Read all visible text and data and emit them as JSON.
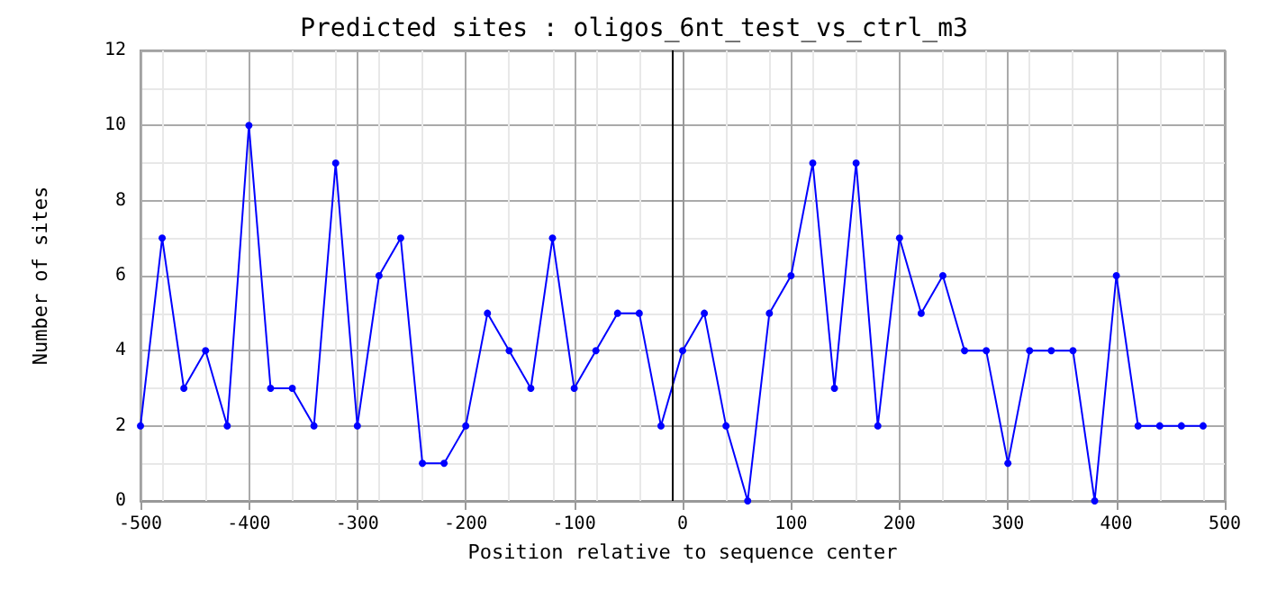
{
  "chart_data": {
    "type": "line",
    "title": "Predicted sites : oligos_6nt_test_vs_ctrl_m3",
    "xlabel": "Position relative to sequence center",
    "ylabel": "Number of sites",
    "x": [
      -500,
      -480,
      -460,
      -440,
      -420,
      -400,
      -380,
      -360,
      -340,
      -320,
      -300,
      -280,
      -260,
      -240,
      -220,
      -200,
      -180,
      -160,
      -140,
      -120,
      -100,
      -80,
      -60,
      -40,
      -20,
      0,
      20,
      40,
      60,
      80,
      100,
      120,
      140,
      160,
      180,
      200,
      220,
      240,
      260,
      280,
      300,
      320,
      340,
      360,
      380,
      400,
      420,
      440,
      460,
      480
    ],
    "series": [
      {
        "color": "#0000ff",
        "values": [
          2,
          7,
          3,
          4,
          2,
          10,
          3,
          3,
          2,
          9,
          2,
          6,
          7,
          1,
          1,
          2,
          5,
          4,
          3,
          7,
          3,
          4,
          5,
          5,
          2,
          4,
          5,
          2,
          0,
          5,
          6,
          9,
          3,
          9,
          2,
          7,
          5,
          6,
          4,
          4,
          1,
          4,
          4,
          4,
          0,
          6,
          2,
          2,
          2,
          2
        ]
      }
    ],
    "xlim": [
      -500,
      500
    ],
    "xticks": [
      -500,
      -400,
      -300,
      -200,
      -100,
      0,
      100,
      200,
      300,
      400,
      500
    ],
    "ylim": [
      0,
      12
    ],
    "yticks": [
      0,
      2,
      4,
      6,
      8,
      10,
      12
    ],
    "grid": true,
    "marker": "circle",
    "line_style": "solid",
    "ref_lines": [
      {
        "axis": "x",
        "value": -10,
        "color": "#000000"
      }
    ]
  }
}
